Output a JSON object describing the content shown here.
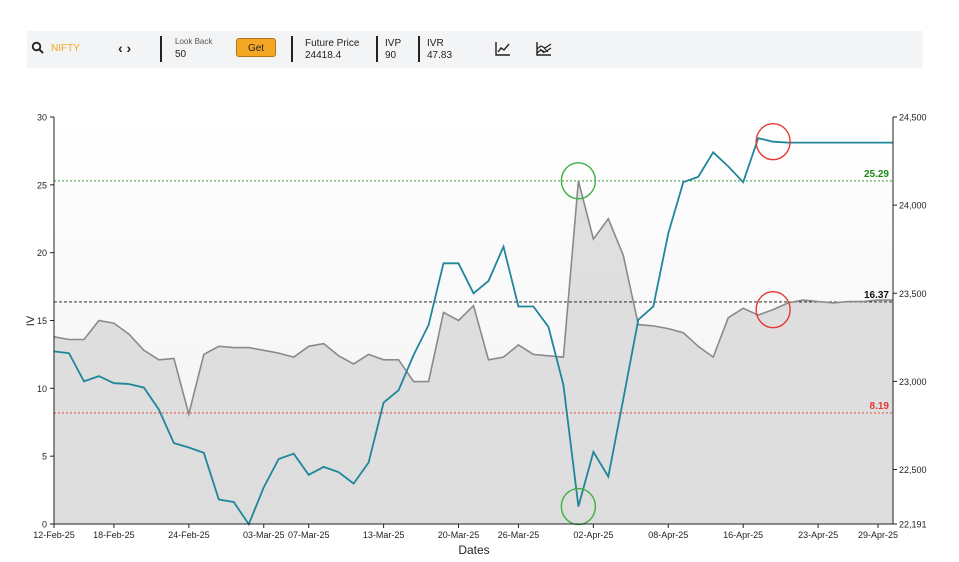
{
  "toolbar": {
    "symbol": "NIFTY",
    "search_icon": "search-icon",
    "nav_arrows": "‹ ›",
    "lookback_label": "Look Back",
    "lookback_value": "50",
    "get_label": "Get",
    "future_price_label": "Future Price",
    "future_price_value": "24418.4",
    "ivp_label": "IVP",
    "ivp_value": "90",
    "ivr_label": "IVR",
    "ivr_value": "47.83",
    "line_chart_icon": "line-chart-icon",
    "area_chart_icon": "area-chart-icon",
    "accent_color": "#f5a623"
  },
  "chart_data": {
    "type": "line",
    "xlabel": "Dates",
    "ylabel": "IV",
    "ylim": [
      0,
      30
    ],
    "y2lim": [
      22191,
      24500
    ],
    "yticks": [
      0,
      5,
      10,
      15,
      20,
      25,
      30
    ],
    "y2ticks": [
      "22,191",
      "22,500",
      "23,000",
      "23,500",
      "24,000",
      "24,500"
    ],
    "y2tick_values": [
      22191,
      22500,
      23000,
      23500,
      24000,
      24500
    ],
    "xtick_labels": [
      "12-Feb-25",
      "18-Feb-25",
      "24-Feb-25",
      "03-Mar-25",
      "07-Mar-25",
      "13-Mar-25",
      "20-Mar-25",
      "26-Mar-25",
      "02-Apr-25",
      "08-Apr-25",
      "16-Apr-25",
      "23-Apr-25",
      "29-Apr-25"
    ],
    "xtick_index": [
      0,
      4,
      9,
      14,
      17,
      22,
      27,
      31,
      36,
      41,
      46,
      51,
      55
    ],
    "n_points": 57,
    "series": [
      {
        "role": "iv",
        "color": "#8a8a8a",
        "fill": "#d9d9d9",
        "values": [
          13.8,
          13.6,
          13.6,
          15.0,
          14.8,
          14.0,
          12.8,
          12.1,
          12.2,
          8.1,
          12.5,
          13.1,
          13.0,
          13.0,
          12.8,
          12.6,
          12.3,
          13.1,
          13.3,
          12.4,
          11.8,
          12.5,
          12.1,
          12.1,
          10.5,
          10.5,
          15.6,
          15.0,
          16.1,
          12.1,
          12.3,
          13.2,
          12.5,
          12.4,
          12.3,
          25.3,
          21.0,
          22.5,
          19.8,
          14.7,
          14.6,
          14.4,
          14.1,
          13.1,
          12.3,
          15.2,
          15.9,
          15.4,
          15.8,
          16.3,
          16.5,
          16.4,
          16.3,
          16.4,
          16.4,
          16.5,
          16.5
        ]
      },
      {
        "role": "future_price",
        "color": "#20869a",
        "values": [
          23170,
          23160,
          23000,
          23030,
          22990,
          22985,
          22965,
          22840,
          22650,
          22625,
          22595,
          22330,
          22315,
          22190,
          22400,
          22560,
          22590,
          22470,
          22515,
          22485,
          22420,
          22540,
          22880,
          22950,
          23150,
          23320,
          23670,
          23670,
          23500,
          23570,
          23765,
          23425,
          23425,
          23310,
          22980,
          22290,
          22600,
          22460,
          22900,
          23350,
          23425,
          23840,
          24130,
          24160,
          24300,
          24220,
          24130,
          24380,
          24360,
          24355,
          24355,
          24355,
          24355,
          24355,
          24355,
          24355,
          24355
        ]
      }
    ],
    "reference_lines": [
      {
        "value": 25.29,
        "label": "25.29",
        "color": "#1b8a1b",
        "dash": "dotted"
      },
      {
        "value": 16.37,
        "label": "16.37",
        "color": "#111111",
        "dash": "dashed"
      },
      {
        "value": 8.19,
        "label": "8.19",
        "color": "#e53935",
        "dash": "dotted"
      }
    ],
    "markers": [
      {
        "index": 35,
        "series": "iv",
        "color": "#3cb043"
      },
      {
        "index": 35,
        "series": "future_price",
        "color": "#3cb043"
      },
      {
        "index": 48,
        "series": "future_price",
        "color": "#e53935"
      },
      {
        "index": 48,
        "series": "iv",
        "color": "#e53935"
      }
    ],
    "grid": false
  }
}
